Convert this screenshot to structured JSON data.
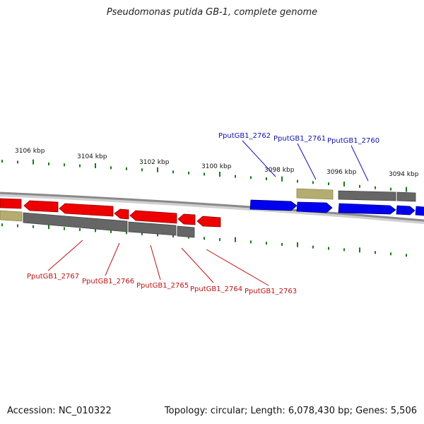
{
  "header": {
    "title": "Pseudomonas putida GB-1, complete genome"
  },
  "footer": {
    "accession": "Accession: NC_010322",
    "summary": "Topology: circular; Length: 6,078,430 bp; Genes: 5,506"
  },
  "colors": {
    "forward_gene": "#0000ee",
    "reverse_gene": "#ee0000",
    "gene_shadow": "#666666",
    "other_feature": "#b5ad70",
    "tick": "#1a7a1a",
    "backbone": "#8a8a8a",
    "forward_label": "#1010b0",
    "reverse_label": "#c01010"
  },
  "scale_labels": [
    "3106 kbp",
    "3104 kbp",
    "3102 kbp",
    "3100 kbp",
    "3098 kbp",
    "3096 kbp",
    "3094 kbp"
  ],
  "forward_labels": [
    "PputGB1_2762",
    "PputGB1_2761",
    "PputGB1_2760"
  ],
  "reverse_labels": [
    "PputGB1_2767",
    "PputGB1_2766",
    "PputGB1_2765",
    "PputGB1_2764",
    "PputGB1_2763"
  ]
}
